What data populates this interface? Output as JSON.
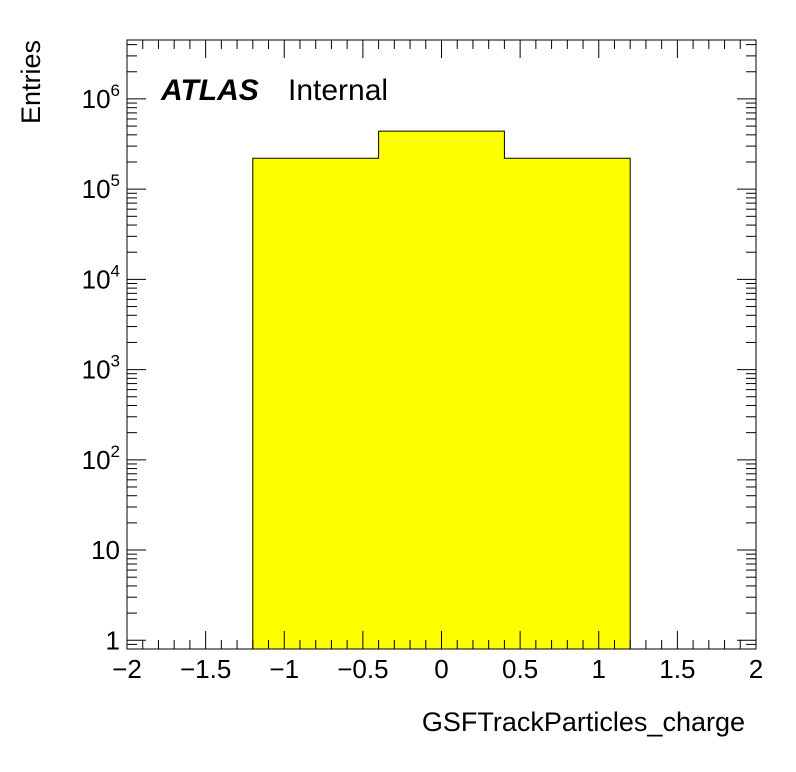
{
  "chart_data": {
    "type": "bar",
    "style": "histogram",
    "xlabel": "GSFTrackParticles_charge",
    "ylabel": "Entries",
    "annotation": {
      "bold": "ATLAS",
      "normal": "Internal"
    },
    "xlim": [
      -2,
      2
    ],
    "ylim": [
      0.8,
      4500000
    ],
    "yscale": "log",
    "grid": false,
    "x_ticks": [
      {
        "value": -2,
        "label": "−2"
      },
      {
        "value": -1.5,
        "label": "−1.5"
      },
      {
        "value": -1,
        "label": "−1"
      },
      {
        "value": -0.5,
        "label": "−0.5"
      },
      {
        "value": 0,
        "label": "0"
      },
      {
        "value": 0.5,
        "label": "0.5"
      },
      {
        "value": 1,
        "label": "1"
      },
      {
        "value": 1.5,
        "label": "1.5"
      },
      {
        "value": 2,
        "label": "2"
      }
    ],
    "y_ticks": [
      {
        "value": 1,
        "base": "1",
        "exp": ""
      },
      {
        "value": 10,
        "base": "10",
        "exp": ""
      },
      {
        "value": 100,
        "base": "10",
        "exp": "2"
      },
      {
        "value": 1000,
        "base": "10",
        "exp": "3"
      },
      {
        "value": 10000,
        "base": "10",
        "exp": "4"
      },
      {
        "value": 100000,
        "base": "10",
        "exp": "5"
      },
      {
        "value": 1000000,
        "base": "10",
        "exp": "6"
      }
    ],
    "bins": [
      {
        "low": -1.2,
        "high": -0.4,
        "value": 220000
      },
      {
        "low": -0.4,
        "high": 0.4,
        "value": 440000
      },
      {
        "low": 0.4,
        "high": 1.2,
        "value": 220000
      }
    ],
    "colors": {
      "fill": "#ffff00",
      "line": "#000000"
    }
  }
}
